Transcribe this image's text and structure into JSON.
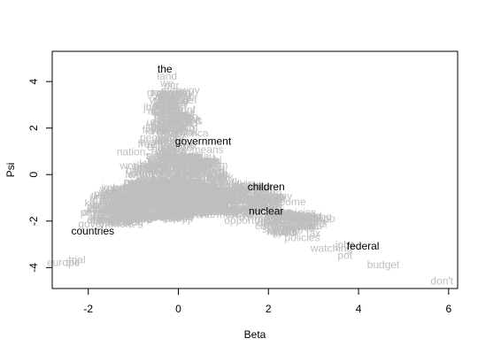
{
  "chart_data": {
    "type": "scatter",
    "xlabel": "Beta",
    "ylabel": "Psi",
    "xlim": [
      -2.8,
      6.2
    ],
    "ylim": [
      -4.9,
      5.3
    ],
    "x_ticks": [
      -2,
      0,
      2,
      4,
      6
    ],
    "y_ticks": [
      -4,
      -2,
      0,
      2,
      4
    ],
    "grey_color": "#bebebe",
    "highlight_color": "#000000",
    "highlighted_words": [
      {
        "word": "the",
        "x": -0.3,
        "y": 4.5
      },
      {
        "word": "government",
        "x": 0.55,
        "y": 1.4
      },
      {
        "word": "children",
        "x": 1.95,
        "y": -0.55
      },
      {
        "word": "nuclear",
        "x": 1.95,
        "y": -1.6
      },
      {
        "word": "countries",
        "x": -1.9,
        "y": -2.45
      },
      {
        "word": "federal",
        "x": 4.1,
        "y": -3.1
      }
    ],
    "background_words": [
      {
        "word": "land",
        "x": -0.25,
        "y": 4.2
      },
      {
        "word": "we",
        "x": -0.25,
        "y": 3.9
      },
      {
        "word": "our",
        "x": -0.15,
        "y": 3.8
      },
      {
        "word": "that",
        "x": -0.2,
        "y": 3.45
      },
      {
        "word": "that",
        "x": -0.2,
        "y": 3.15
      },
      {
        "word": "has",
        "x": -0.15,
        "y": 3.0
      },
      {
        "word": "they",
        "x": -0.2,
        "y": 2.75
      },
      {
        "word": "tried",
        "x": -0.2,
        "y": 2.55
      },
      {
        "word": "was",
        "x": 0.0,
        "y": 2.45
      },
      {
        "word": "also",
        "x": -0.4,
        "y": 2.25
      },
      {
        "word": "have",
        "x": -0.05,
        "y": 2.15
      },
      {
        "word": "free",
        "x": -0.6,
        "y": 1.9
      },
      {
        "word": "america",
        "x": 0.25,
        "y": 1.75
      },
      {
        "word": "people",
        "x": -0.5,
        "y": 1.55
      },
      {
        "word": "free",
        "x": -0.7,
        "y": 1.3
      },
      {
        "word": "nation",
        "x": -1.05,
        "y": 0.95
      },
      {
        "word": "means",
        "x": 0.65,
        "y": 1.05
      },
      {
        "word": "ideas",
        "x": 0.65,
        "y": 0.55
      },
      {
        "word": "work",
        "x": -1.05,
        "y": 0.35
      },
      {
        "word": "things",
        "x": 0.8,
        "y": 0.0
      },
      {
        "word": "peace",
        "x": -1.55,
        "y": -0.85
      },
      {
        "word": "ever",
        "x": -1.6,
        "y": -1.35
      },
      {
        "word": "intent",
        "x": -1.75,
        "y": -1.55
      },
      {
        "word": "security",
        "x": -1.5,
        "y": -1.85
      },
      {
        "word": "government",
        "x": -1.6,
        "y": -2.15
      },
      {
        "word": "economy",
        "x": 2.05,
        "y": -0.95
      },
      {
        "word": "income",
        "x": 2.45,
        "y": -1.2
      },
      {
        "word": "progress",
        "x": 2.45,
        "y": -1.75
      },
      {
        "word": "opportunity",
        "x": 1.6,
        "y": -2.0
      },
      {
        "word": "plan",
        "x": 2.2,
        "y": -2.35
      },
      {
        "word": "tax",
        "x": 3.0,
        "y": -2.55
      },
      {
        "word": "policies",
        "x": 2.75,
        "y": -2.75
      },
      {
        "word": "watching",
        "x": 3.4,
        "y": -3.2
      },
      {
        "word": "jobs",
        "x": 3.7,
        "y": -3.05
      },
      {
        "word": "pot",
        "x": 3.7,
        "y": -3.5
      },
      {
        "word": "budget",
        "x": 4.55,
        "y": -3.9
      },
      {
        "word": "don't",
        "x": 5.85,
        "y": -4.6
      },
      {
        "word": "europe",
        "x": -2.55,
        "y": -3.8
      },
      {
        "word": "toll",
        "x": -2.35,
        "y": -3.8
      },
      {
        "word": "trial",
        "x": -2.25,
        "y": -3.7
      }
    ]
  }
}
